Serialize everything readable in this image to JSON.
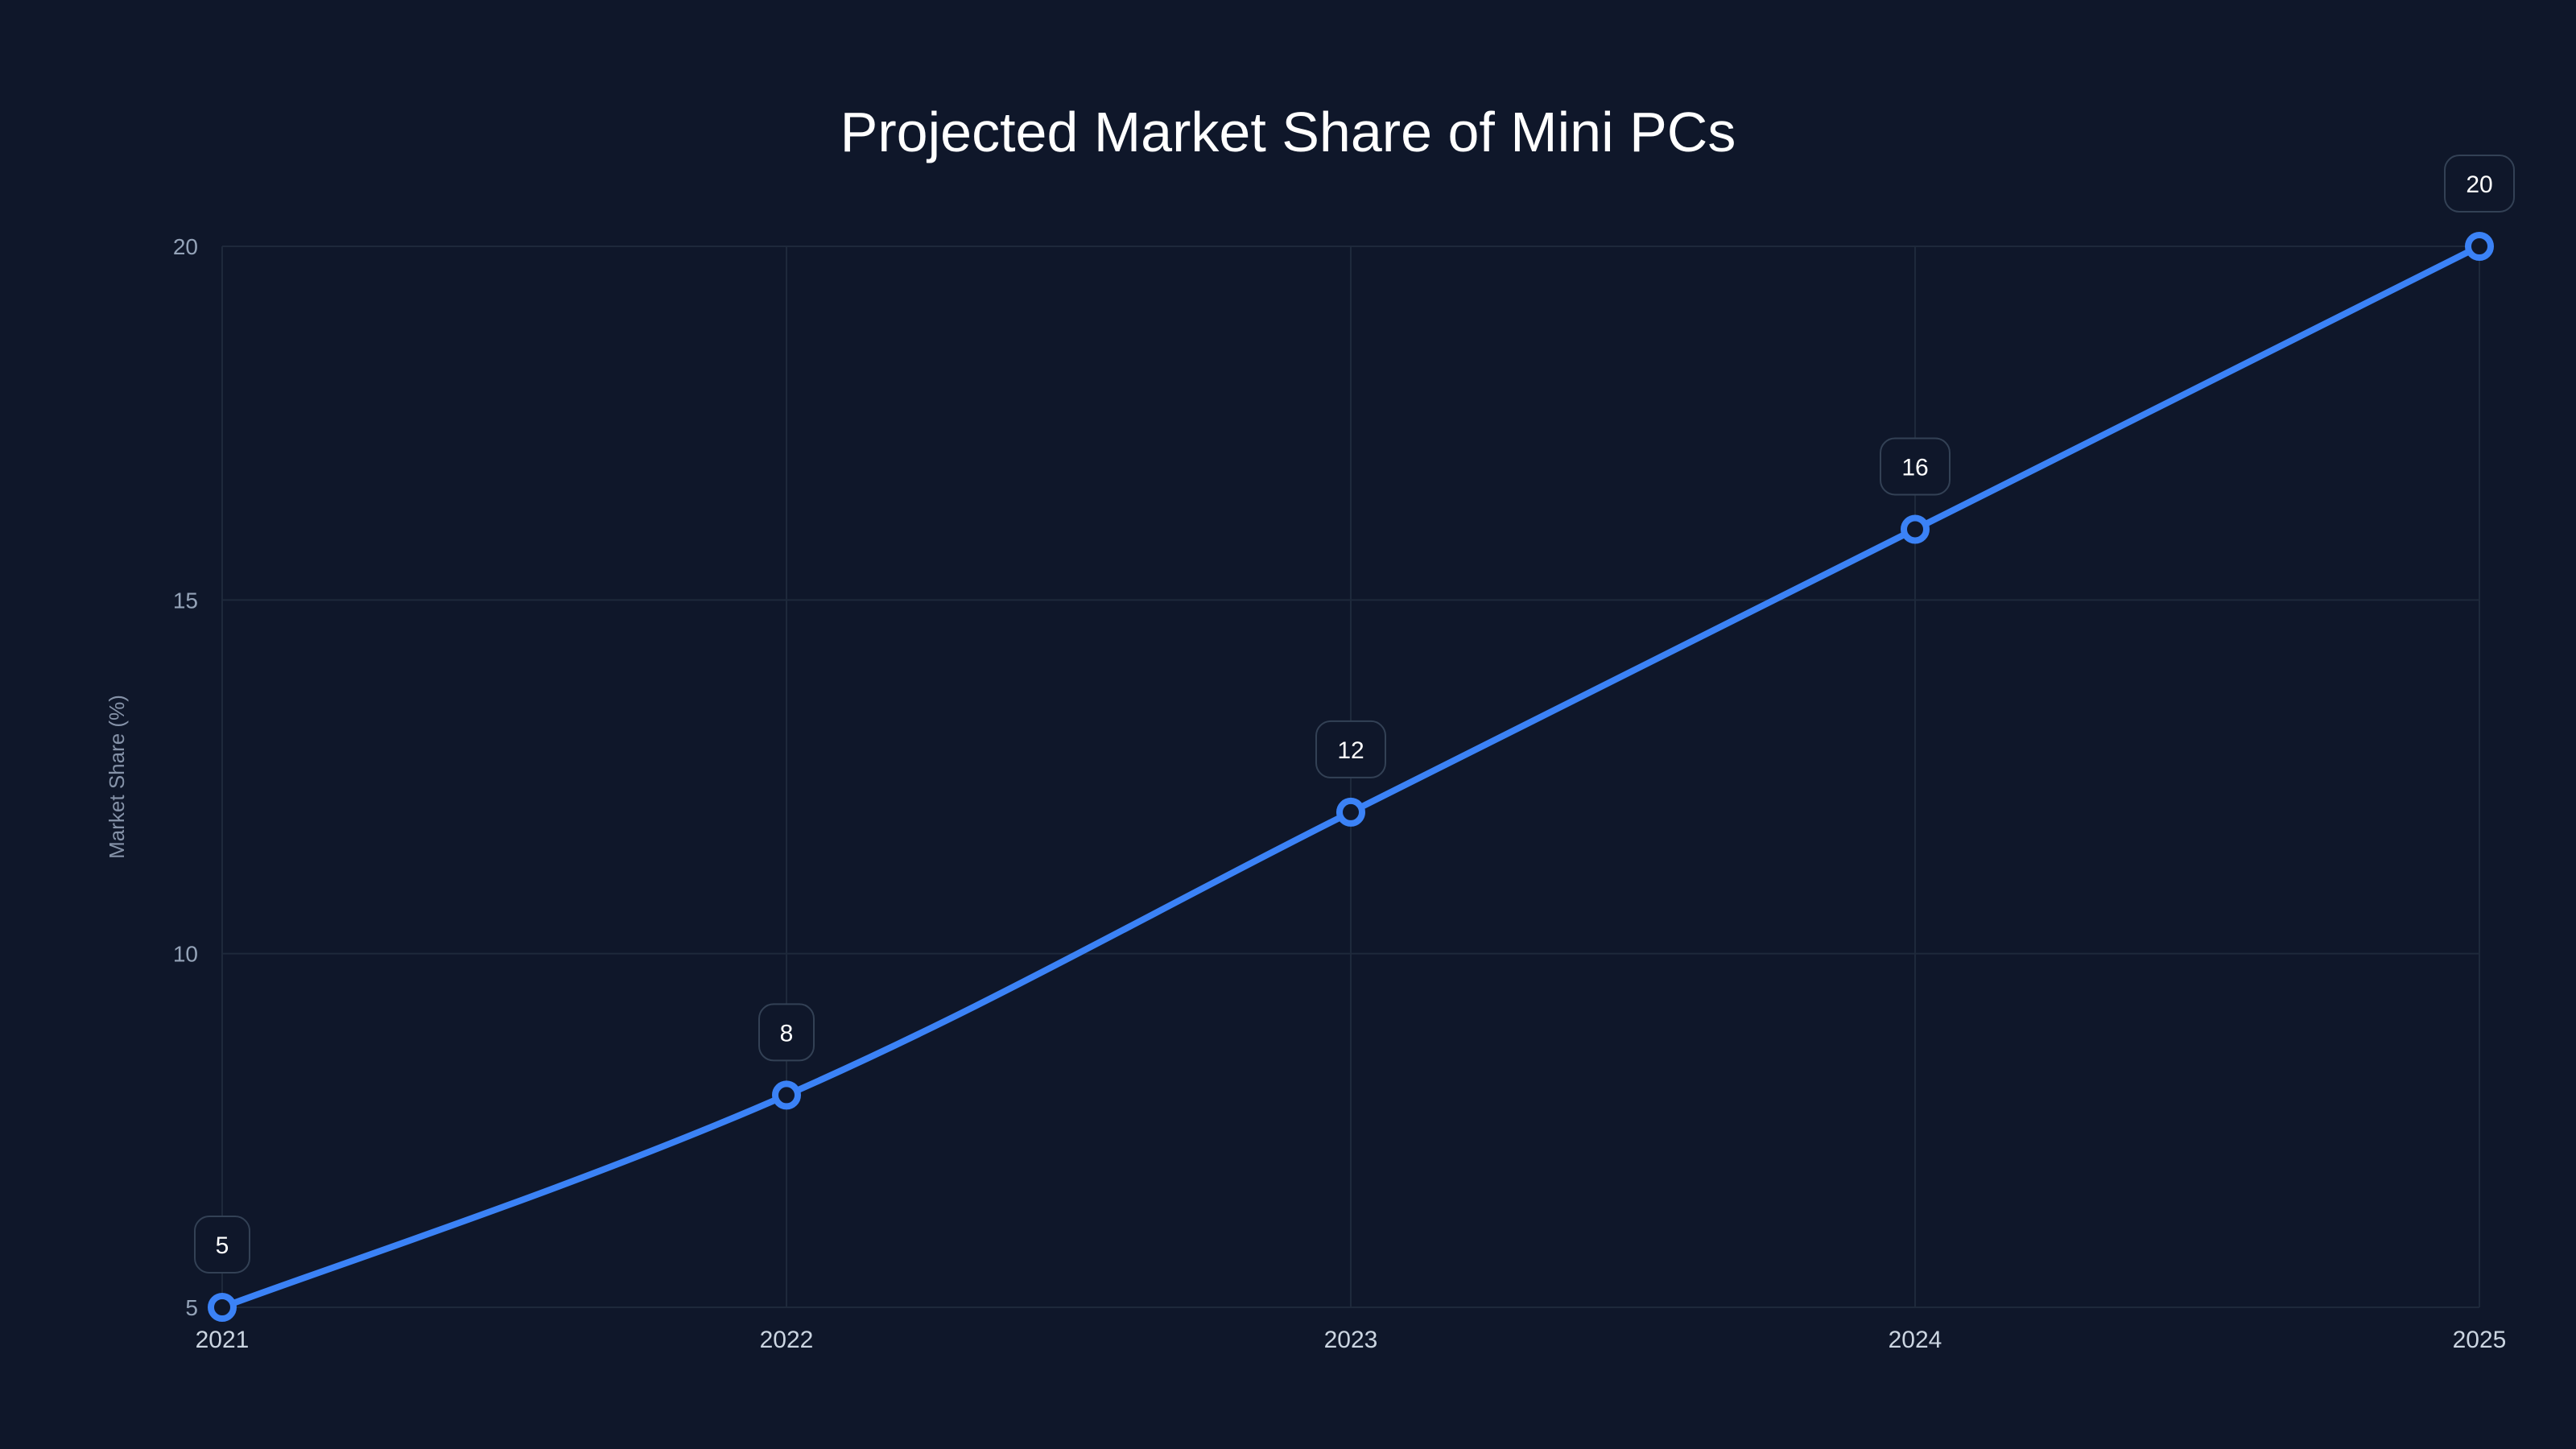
{
  "chart_data": {
    "type": "line",
    "title": "Projected Market Share of Mini PCs",
    "xlabel": "",
    "ylabel": "Market Share (%)",
    "categories": [
      "2021",
      "2022",
      "2023",
      "2024",
      "2025"
    ],
    "series": [
      {
        "name": "Market Share (%)",
        "values": [
          5,
          8,
          12,
          16,
          20
        ],
        "color": "#3b82f6"
      }
    ],
    "data_labels": [
      "5",
      "8",
      "12",
      "16",
      "20"
    ],
    "yticks": [
      "5",
      "10",
      "15",
      "20"
    ],
    "ylim": [
      5,
      20
    ],
    "grid": true,
    "legend": "none"
  },
  "colors": {
    "background": "#0f172a",
    "line": "#3b82f6",
    "grid": "#1e293b",
    "label_border": "#334155"
  }
}
